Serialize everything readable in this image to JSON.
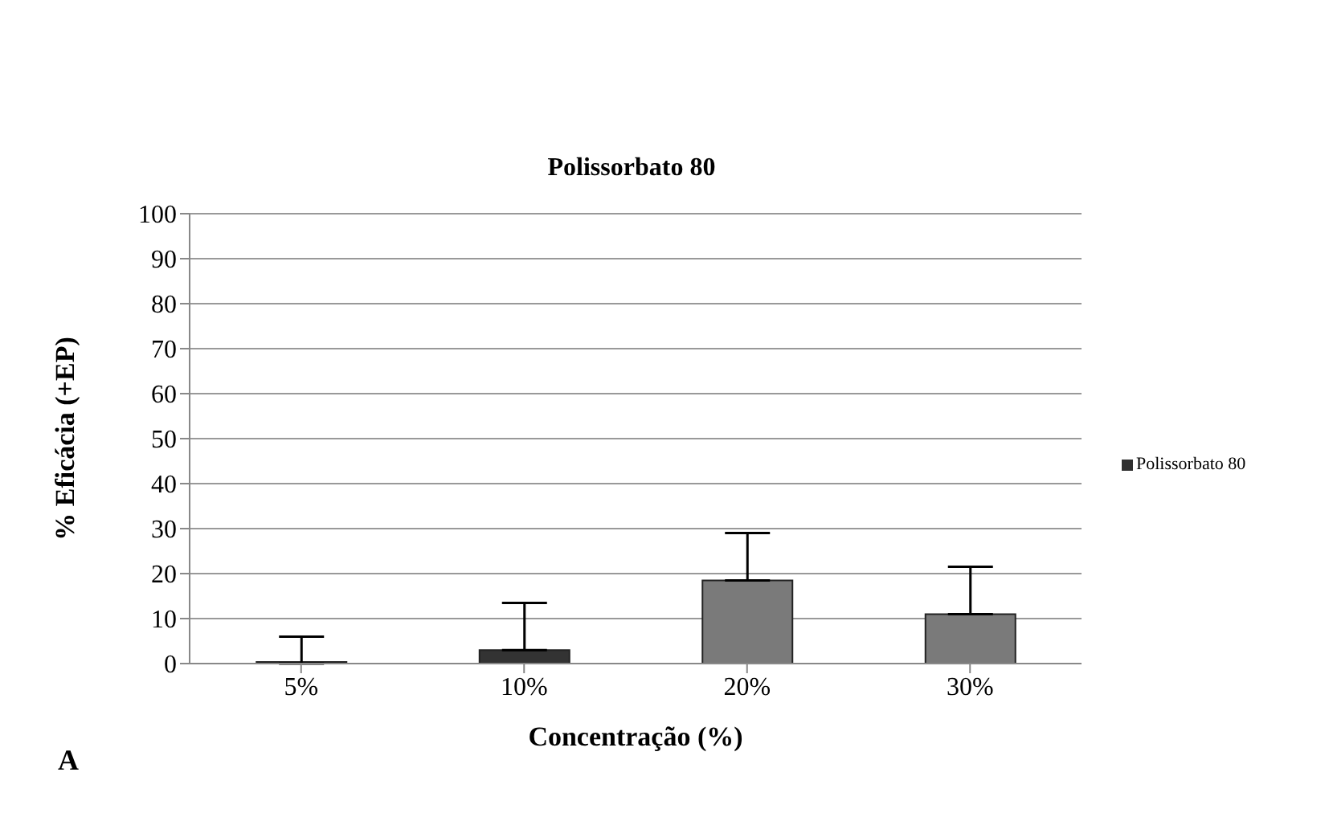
{
  "chart_data": {
    "type": "bar",
    "title": "Polissorbato 80",
    "xlabel": "Concentração (%)",
    "ylabel": "% Eficácia (+EP)",
    "categories": [
      "5%",
      "10%",
      "20%",
      "30%"
    ],
    "series": [
      {
        "name": "Polissorbato 80",
        "color": "#2f2f2f",
        "colors": [
          "#7a7a7a",
          "#333333",
          "#7a7a7a",
          "#7a7a7a"
        ],
        "values": [
          0,
          3,
          18.5,
          11
        ],
        "errors": [
          [
            0,
            6
          ],
          [
            3,
            13.5
          ],
          [
            18.5,
            29
          ],
          [
            11,
            21.5
          ]
        ]
      }
    ],
    "ylim": [
      0,
      100
    ],
    "yticks": [
      0,
      10,
      20,
      30,
      40,
      50,
      60,
      70,
      80,
      90,
      100
    ],
    "grid": "y",
    "legend": "right",
    "annotations": [
      "A"
    ]
  }
}
